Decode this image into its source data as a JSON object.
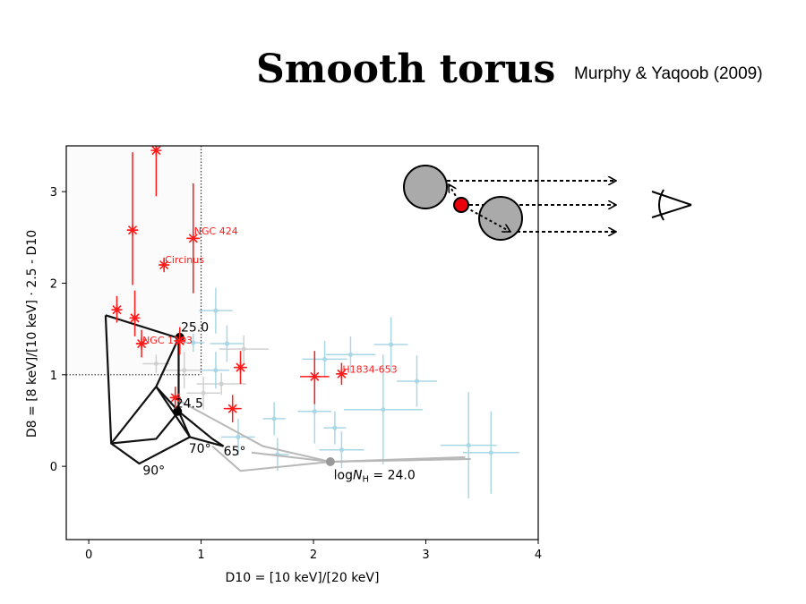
{
  "slide": {
    "title": "Smooth torus",
    "reference": "Murphy & Yaqoob (2009)"
  },
  "chart_data": {
    "type": "scatter",
    "xlabel": "D10 = [10 keV]/[20 keV]",
    "ylabel": "D8 = [8 keV]/[10 keV] · 2.5 - D10",
    "xlim": [
      -0.2,
      4.0
    ],
    "ylim": [
      -0.8,
      3.5
    ],
    "xticks": [
      0,
      1,
      2,
      3,
      4
    ],
    "yticks": [
      0,
      1,
      2,
      3
    ],
    "threshold": {
      "x": 1.0,
      "y": 1.0
    },
    "colors": {
      "red": "#ff1a1a",
      "blue": "#a9d7e6",
      "grey_grid": "#b8b8b8",
      "black": "#111111"
    },
    "red_points": [
      {
        "x": 0.6,
        "y": 3.45,
        "yerr_lo": 0.5,
        "yerr_hi": 0.2,
        "xerr": 0.0
      },
      {
        "x": 0.39,
        "y": 2.58,
        "yerr_lo": 0.6,
        "yerr_hi": 0.85,
        "xerr": 0.05
      },
      {
        "x": 0.93,
        "y": 2.49,
        "yerr_lo": 0.6,
        "yerr_hi": 0.6,
        "xerr": 0.06
      },
      {
        "x": 0.67,
        "y": 2.2,
        "yerr_lo": 0.08,
        "yerr_hi": 0.08,
        "xerr": 0.04
      },
      {
        "x": 0.25,
        "y": 1.71,
        "yerr_lo": 0.14,
        "yerr_hi": 0.15,
        "xerr": 0.03
      },
      {
        "x": 0.41,
        "y": 1.62,
        "yerr_lo": 0.2,
        "yerr_hi": 0.3,
        "xerr": 0.04
      },
      {
        "x": 0.47,
        "y": 1.34,
        "yerr_lo": 0.15,
        "yerr_hi": 0.15,
        "xerr": 0.05
      },
      {
        "x": 0.81,
        "y": 1.37,
        "yerr_lo": 0.15,
        "yerr_hi": 0.15,
        "xerr": 0.05
      },
      {
        "x": 0.77,
        "y": 0.75,
        "yerr_lo": 0.12,
        "yerr_hi": 0.12,
        "xerr": 0.03
      },
      {
        "x": 1.35,
        "y": 1.08,
        "yerr_lo": 0.18,
        "yerr_hi": 0.18,
        "xerr": 0.06
      },
      {
        "x": 1.28,
        "y": 0.63,
        "yerr_lo": 0.15,
        "yerr_hi": 0.15,
        "xerr": 0.08
      },
      {
        "x": 2.01,
        "y": 0.98,
        "yerr_lo": 0.3,
        "yerr_hi": 0.28,
        "xerr": 0.13
      },
      {
        "x": 2.25,
        "y": 1.01,
        "yerr_lo": 0.12,
        "yerr_hi": 0.12,
        "xerr": 0.05
      }
    ],
    "red_labels": [
      {
        "text": "NGC 424",
        "x": 0.93,
        "y": 2.57
      },
      {
        "text": "Circinus",
        "x": 0.67,
        "y": 2.26
      },
      {
        "text": "NGC 1193",
        "x": 0.47,
        "y": 1.38
      },
      {
        "text": "H1834-653",
        "x": 2.25,
        "y": 1.06
      }
    ],
    "blue_points": [
      {
        "x": 1.13,
        "y": 1.7,
        "xerr": 0.15,
        "yerr": 0.25
      },
      {
        "x": 1.23,
        "y": 1.34,
        "xerr": 0.15,
        "yerr": 0.2
      },
      {
        "x": 1.13,
        "y": 1.05,
        "xerr": 0.12,
        "yerr": 0.2
      },
      {
        "x": 1.33,
        "y": 0.32,
        "xerr": 0.15,
        "yerr": 0.2
      },
      {
        "x": 1.65,
        "y": 0.52,
        "xerr": 0.1,
        "yerr": 0.18
      },
      {
        "x": 1.68,
        "y": 0.13,
        "xerr": 0.1,
        "yerr": 0.18
      },
      {
        "x": 2.01,
        "y": 0.6,
        "xerr": 0.15,
        "yerr": 0.35
      },
      {
        "x": 2.1,
        "y": 1.17,
        "xerr": 0.2,
        "yerr": 0.2
      },
      {
        "x": 2.19,
        "y": 0.42,
        "xerr": 0.1,
        "yerr": 0.18
      },
      {
        "x": 2.25,
        "y": 0.18,
        "xerr": 0.2,
        "yerr": 0.2
      },
      {
        "x": 2.33,
        "y": 1.22,
        "xerr": 0.22,
        "yerr": 0.2
      },
      {
        "x": 2.62,
        "y": 0.62,
        "xerr": 0.35,
        "yerr": 0.6
      },
      {
        "x": 2.69,
        "y": 1.33,
        "xerr": 0.15,
        "yerr": 0.3
      },
      {
        "x": 2.92,
        "y": 0.93,
        "xerr": 0.18,
        "yerr": 0.28
      },
      {
        "x": 3.38,
        "y": 0.23,
        "xerr": 0.25,
        "yerr": 0.58
      },
      {
        "x": 3.58,
        "y": 0.15,
        "xerr": 0.25,
        "yerr": 0.45
      },
      {
        "x": 0.93,
        "y": 1.35,
        "xerr": 0.1,
        "yerr": 0.1
      }
    ],
    "grey_points": [
      {
        "x": 1.38,
        "y": 1.28,
        "xerr": 0.22,
        "yerr": 0.15
      },
      {
        "x": 1.18,
        "y": 0.9,
        "xerr": 0.22,
        "yerr": 0.12
      },
      {
        "x": 0.85,
        "y": 1.05,
        "xerr": 0.18,
        "yerr": 0.2
      },
      {
        "x": 1.02,
        "y": 0.8,
        "xerr": 0.15,
        "yerr": 0.18
      },
      {
        "x": 0.6,
        "y": 1.12,
        "xerr": 0.12,
        "yerr": 0.1
      }
    ],
    "grey_grid_lines": [
      [
        [
          0.8,
          0.72
        ],
        [
          1.55,
          0.22
        ],
        [
          2.15,
          0.05
        ],
        [
          3.4,
          0.08
        ]
      ],
      [
        [
          1.1,
          0.22
        ],
        [
          1.35,
          -0.05
        ],
        [
          2.15,
          0.05
        ],
        [
          3.35,
          0.1
        ]
      ],
      [
        [
          1.45,
          0.15
        ],
        [
          2.15,
          0.05
        ],
        [
          3.38,
          0.08
        ]
      ]
    ],
    "grey_marker": {
      "x": 2.15,
      "y": 0.05
    },
    "black_grid_lines": [
      [
        [
          0.15,
          1.65
        ],
        [
          0.8,
          1.4
        ],
        [
          0.8,
          0.6
        ],
        [
          0.6,
          0.3
        ],
        [
          0.2,
          0.25
        ],
        [
          0.15,
          1.65
        ]
      ],
      [
        [
          0.8,
          1.4
        ],
        [
          0.6,
          0.87
        ],
        [
          0.2,
          0.25
        ]
      ],
      [
        [
          0.6,
          0.87
        ],
        [
          0.8,
          0.6
        ],
        [
          1.1,
          0.3
        ],
        [
          1.2,
          0.22
        ]
      ],
      [
        [
          0.6,
          0.87
        ],
        [
          0.9,
          0.32
        ],
        [
          1.2,
          0.22
        ]
      ],
      [
        [
          0.9,
          0.32
        ],
        [
          0.45,
          0.03
        ],
        [
          0.2,
          0.25
        ]
      ],
      [
        [
          0.8,
          0.6
        ],
        [
          0.9,
          0.32
        ]
      ]
    ],
    "black_markers": [
      {
        "x": 0.81,
        "y": 1.41
      },
      {
        "x": 0.79,
        "y": 0.6
      }
    ],
    "annotations": [
      {
        "text": "25.0",
        "x": 0.82,
        "y": 1.47
      },
      {
        "text": "24.5",
        "x": 0.77,
        "y": 0.64
      },
      {
        "text": "70°",
        "x": 0.89,
        "y": 0.15
      },
      {
        "text": "65°",
        "x": 1.2,
        "y": 0.12
      },
      {
        "text": "90°",
        "x": 0.48,
        "y": -0.09
      },
      {
        "text": "logN_H = 24.0",
        "x": 2.18,
        "y": -0.14
      }
    ]
  },
  "schematic": {
    "grey_sphere_color": "#aaaaaa",
    "agn_color": "#e8000b"
  }
}
